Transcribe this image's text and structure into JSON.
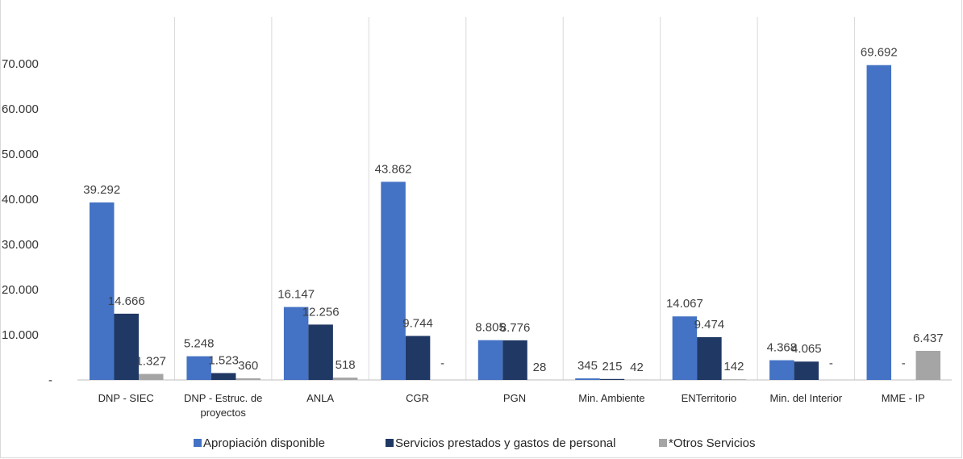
{
  "chart_data": {
    "type": "bar",
    "categories": [
      [
        "DNP - SIEC"
      ],
      [
        "DNP - Estruc. de",
        "proyectos"
      ],
      [
        "ANLA"
      ],
      [
        "CGR"
      ],
      [
        "PGN"
      ],
      [
        "Min. Ambiente"
      ],
      [
        "ENTerritorio"
      ],
      [
        "Min. del Interior"
      ],
      [
        "MME - IP"
      ]
    ],
    "series": [
      {
        "name": "Apropiación disponible",
        "color": "#4472c4",
        "values": [
          39292,
          5248,
          16147,
          43862,
          8805,
          345,
          14067,
          4368,
          69692
        ],
        "labels": [
          "39.292",
          "5.248",
          "16.147",
          "43.862",
          "8.805",
          "345",
          "14.067",
          "4.368",
          "69.692"
        ]
      },
      {
        "name": "Servicios prestados y gastos de personal",
        "color": "#203864",
        "values": [
          14666,
          1523,
          12256,
          9744,
          8776,
          215,
          9474,
          4065,
          0
        ],
        "labels": [
          "14.666",
          "1.523",
          "12.256",
          "9.744",
          "8.776",
          "215",
          "9.474",
          "4.065",
          "-"
        ]
      },
      {
        "name": "*Otros Servicios",
        "color": "#a5a5a5",
        "values": [
          1327,
          360,
          518,
          0,
          28,
          42,
          142,
          0,
          6437
        ],
        "labels": [
          "1.327",
          "360",
          "518",
          "-",
          "28",
          "42",
          "142",
          "-",
          "6.437"
        ]
      }
    ],
    "yticks": [
      "-",
      "10.000",
      "20.000",
      "30.000",
      "40.000",
      "50.000",
      "60.000",
      "70.000"
    ],
    "ylim": [
      0,
      70000
    ],
    "xlabel": "",
    "ylabel": "",
    "grid": "vertical category separators",
    "legend": "bottom"
  }
}
